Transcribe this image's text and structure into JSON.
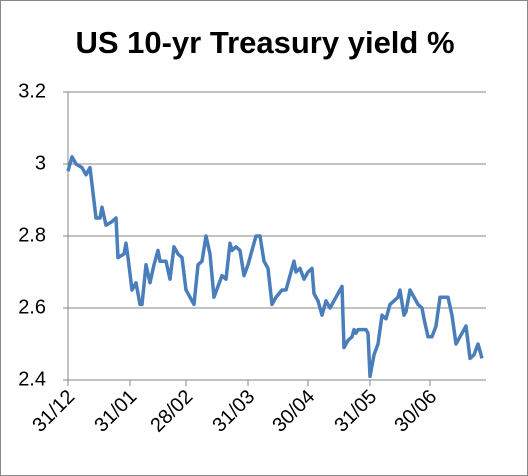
{
  "chart_data": {
    "type": "line",
    "title": "US 10-yr Treasury yield %",
    "x": [
      0,
      2,
      4,
      7,
      9,
      11,
      14,
      16,
      17,
      19,
      22,
      24,
      25,
      28,
      29,
      30,
      32,
      34,
      36,
      37,
      39,
      41,
      43,
      45,
      46,
      49,
      51,
      53,
      55,
      57,
      59,
      61,
      63,
      65,
      67,
      69,
      71,
      73,
      75,
      77,
      79,
      81,
      82,
      84,
      86,
      88,
      90,
      92,
      94,
      96,
      98,
      100,
      102,
      104,
      107,
      109,
      111,
      113,
      114,
      116,
      118,
      120,
      122,
      123,
      125,
      127,
      129,
      131,
      133,
      135,
      137,
      138,
      140,
      142,
      143,
      144,
      145,
      147,
      149,
      150,
      151,
      153,
      155,
      157,
      159,
      161,
      163,
      165,
      166,
      168,
      169,
      171,
      173,
      175,
      177,
      178,
      180,
      182,
      184,
      186,
      190,
      192,
      194,
      196,
      198,
      199,
      201,
      203,
      205,
      207
    ],
    "values": [
      2.98,
      3.02,
      3.0,
      2.99,
      2.97,
      2.99,
      2.85,
      2.85,
      2.88,
      2.83,
      2.84,
      2.85,
      2.74,
      2.75,
      2.78,
      2.74,
      2.65,
      2.67,
      2.61,
      2.61,
      2.72,
      2.67,
      2.72,
      2.76,
      2.73,
      2.73,
      2.68,
      2.77,
      2.75,
      2.74,
      2.65,
      2.63,
      2.61,
      2.72,
      2.73,
      2.8,
      2.75,
      2.63,
      2.66,
      2.69,
      2.68,
      2.78,
      2.76,
      2.77,
      2.76,
      2.69,
      2.72,
      2.76,
      2.8,
      2.8,
      2.73,
      2.71,
      2.61,
      2.63,
      2.65,
      2.65,
      2.69,
      2.73,
      2.7,
      2.71,
      2.68,
      2.7,
      2.71,
      2.64,
      2.62,
      2.58,
      2.62,
      2.6,
      2.62,
      2.64,
      2.66,
      2.49,
      2.51,
      2.52,
      2.54,
      2.53,
      2.54,
      2.54,
      2.54,
      2.53,
      2.41,
      2.47,
      2.5,
      2.58,
      2.57,
      2.61,
      2.62,
      2.63,
      2.65,
      2.58,
      2.59,
      2.65,
      2.63,
      2.61,
      2.6,
      2.57,
      2.52,
      2.52,
      2.55,
      2.63,
      2.63,
      2.58,
      2.5,
      2.52,
      2.54,
      2.55,
      2.46,
      2.47,
      2.5,
      2.46
    ],
    "color": "#4a7ebb",
    "xlim": [
      0,
      209
    ],
    "xticks": [
      {
        "value": 0,
        "label": "31/12"
      },
      {
        "value": 31,
        "label": "31/01"
      },
      {
        "value": 59,
        "label": "28/02"
      },
      {
        "value": 90,
        "label": "31/03"
      },
      {
        "value": 120,
        "label": "30/04"
      },
      {
        "value": 151,
        "label": "31/05"
      },
      {
        "value": 181,
        "label": "30/06"
      }
    ],
    "ylim": [
      2.4,
      3.2
    ],
    "yticks": [
      2.4,
      2.6,
      2.8,
      3,
      3.2
    ],
    "grid": true
  }
}
